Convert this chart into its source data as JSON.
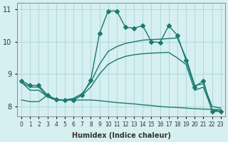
{
  "background_color": "#d6eff0",
  "grid_color": "#b0d8da",
  "line_color": "#1a7a6e",
  "x_min": -0.5,
  "x_max": 23.5,
  "y_min": 7.7,
  "y_max": 11.2,
  "yticks": [
    8,
    9,
    10,
    11
  ],
  "xlabel": "Humidex (Indice chaleur)",
  "line1_y": [
    8.8,
    8.65,
    8.65,
    8.35,
    8.22,
    8.2,
    8.2,
    8.35,
    8.82,
    10.25,
    10.95,
    10.95,
    10.45,
    10.42,
    10.5,
    10.0,
    9.98,
    10.5,
    10.2,
    9.42,
    8.6,
    8.8,
    7.85,
    7.85
  ],
  "line2_y": [
    8.75,
    8.5,
    8.5,
    8.3,
    8.2,
    8.2,
    8.25,
    8.4,
    8.75,
    9.3,
    9.7,
    9.85,
    9.95,
    10.0,
    10.05,
    10.07,
    10.08,
    10.1,
    10.12,
    9.5,
    8.65,
    8.7,
    8.0,
    7.95
  ],
  "line3_y": [
    8.75,
    8.6,
    8.6,
    8.3,
    8.2,
    8.2,
    8.22,
    8.35,
    8.6,
    9.0,
    9.3,
    9.45,
    9.55,
    9.6,
    9.63,
    9.65,
    9.66,
    9.67,
    9.5,
    9.3,
    8.5,
    8.6,
    7.9,
    7.85
  ],
  "line4_y": [
    8.2,
    8.15,
    8.15,
    8.35,
    8.2,
    8.2,
    8.2,
    8.2,
    8.2,
    8.18,
    8.15,
    8.12,
    8.1,
    8.08,
    8.05,
    8.03,
    8.0,
    7.98,
    7.97,
    7.95,
    7.93,
    7.92,
    7.91,
    7.9
  ]
}
